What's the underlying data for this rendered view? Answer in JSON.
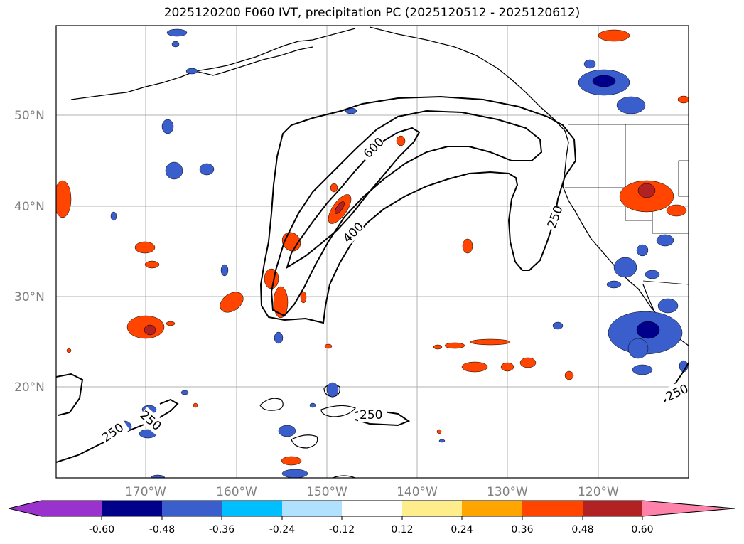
{
  "title": "2025120200 F060 IVT, precipitation PC (2025120512 - 2025120612)",
  "lat_labels": [
    "50°N",
    "40°N",
    "30°N",
    "20°N"
  ],
  "lon_labels": [
    "170°W",
    "160°W",
    "150°W",
    "140°W",
    "130°W",
    "120°W"
  ],
  "colorbar": {
    "ticks": [
      "-0.60",
      "-0.48",
      "-0.36",
      "-0.24",
      "-0.12",
      "0.12",
      "0.24",
      "0.36",
      "0.48",
      "0.60"
    ],
    "colors": [
      "#9a32cd",
      "#00008b",
      "#3a5fcd",
      "#00bfff",
      "#b0e2ff",
      "#ffffff",
      "#ffec8b",
      "#ffa500",
      "#ff4500",
      "#b22222",
      "#ff82ab"
    ]
  },
  "contour_labels": {
    "c600": "600",
    "c400": "400",
    "c250_east": "250",
    "c250_hawaii": "250",
    "c250_west1": "250",
    "c250_west2": "250",
    "c250_se": "250"
  }
}
